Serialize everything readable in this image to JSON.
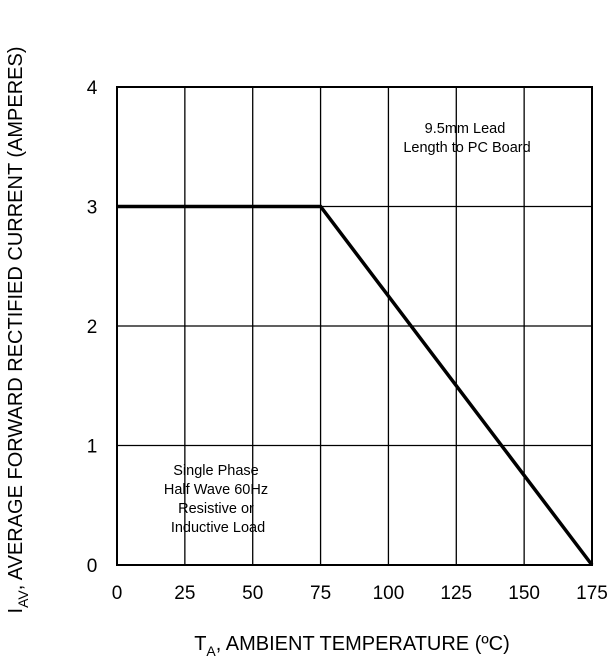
{
  "chart_data": {
    "type": "line",
    "xlabel_main": "T",
    "xlabel_sub": "A",
    "xlabel_rest": ", AMBIENT TEMPERATURE (ºC)",
    "ylabel_main": "I",
    "ylabel_sub": "AV",
    "ylabel_rest": ", AVERAGE FORWARD RECTIFIED CURRENT (AMPERES)",
    "xlim": [
      0,
      175
    ],
    "ylim": [
      0,
      4
    ],
    "xticks": [
      0,
      25,
      50,
      75,
      100,
      125,
      150,
      175
    ],
    "yticks": [
      0,
      1,
      2,
      3,
      4
    ],
    "grid": true,
    "series": [
      {
        "x": [
          0,
          75,
          175
        ],
        "y": [
          3,
          3,
          0
        ]
      }
    ],
    "annotations": {
      "lead": [
        "9.5mm Lead",
        "Length to PC Board"
      ],
      "load": [
        "Single Phase",
        "Half Wave 60Hz",
        "Resistive or",
        "Inductive Load"
      ]
    }
  }
}
